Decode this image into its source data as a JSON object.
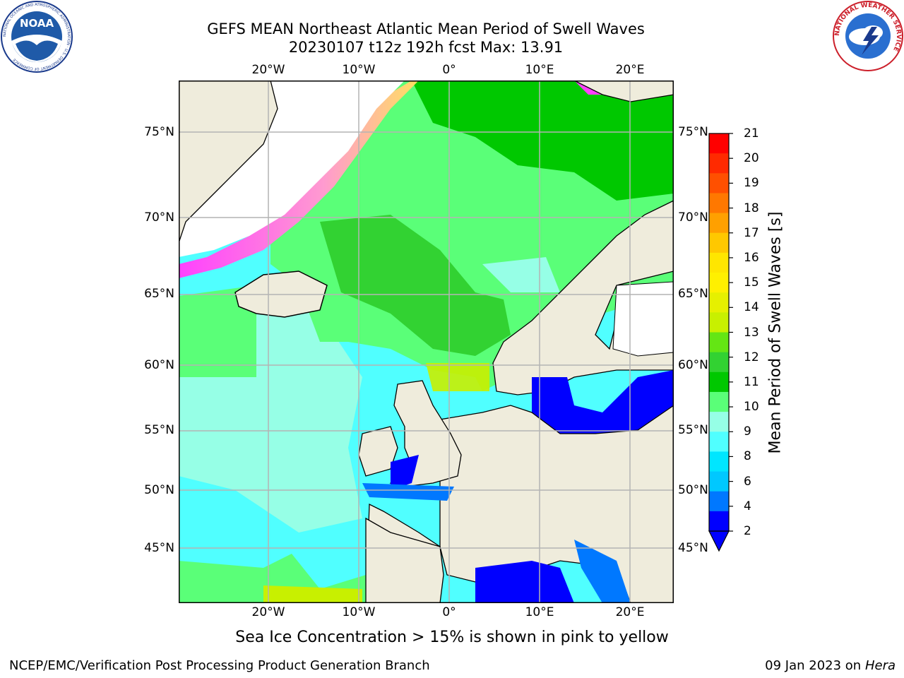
{
  "header": {
    "title_line1": "GEFS MEAN Northeast Atlantic Mean Period of Swell Waves",
    "title_line2": "20230107 t12z 192h fcst   Max: 13.91"
  },
  "logos": {
    "noaa_text": "NOAA",
    "noaa_ring": "NATIONAL OCEANIC AND ATMOSPHERIC ADMINISTRATION · U.S. DEPARTMENT OF COMMERCE",
    "nws_ring": "NATIONAL WEATHER SERVICE"
  },
  "map": {
    "lon_labels": [
      "20°W",
      "10°W",
      "0°",
      "10°E",
      "20°E"
    ],
    "lat_labels": [
      "75°N",
      "70°N",
      "65°N",
      "60°N",
      "55°N",
      "50°N",
      "45°N"
    ],
    "grid": true
  },
  "colorbar": {
    "label": "Mean Period of Swell Waves [s]",
    "ticks": [
      "21",
      "20",
      "19",
      "18",
      "17",
      "16",
      "15",
      "14",
      "13",
      "12",
      "11",
      "10",
      "9",
      "8",
      "6",
      "4",
      "2"
    ],
    "colors": [
      "#ff0000",
      "#ff2a00",
      "#ff5000",
      "#ff7800",
      "#ffa000",
      "#ffc800",
      "#ffe600",
      "#fff000",
      "#e6f000",
      "#c8f000",
      "#64e614",
      "#32d232",
      "#00c800",
      "#5aff78",
      "#96ffe6",
      "#50ffff",
      "#00e6ff",
      "#00c8ff",
      "#0078ff",
      "#0000ff"
    ],
    "extend": "min"
  },
  "note": "Sea Ice Concentration > 15% is shown in pink to yellow",
  "footer": {
    "left": "NCEP/EMC/Verification Post Processing Product Generation Branch",
    "date": "09 Jan 2023 on ",
    "machine": "Hera"
  }
}
